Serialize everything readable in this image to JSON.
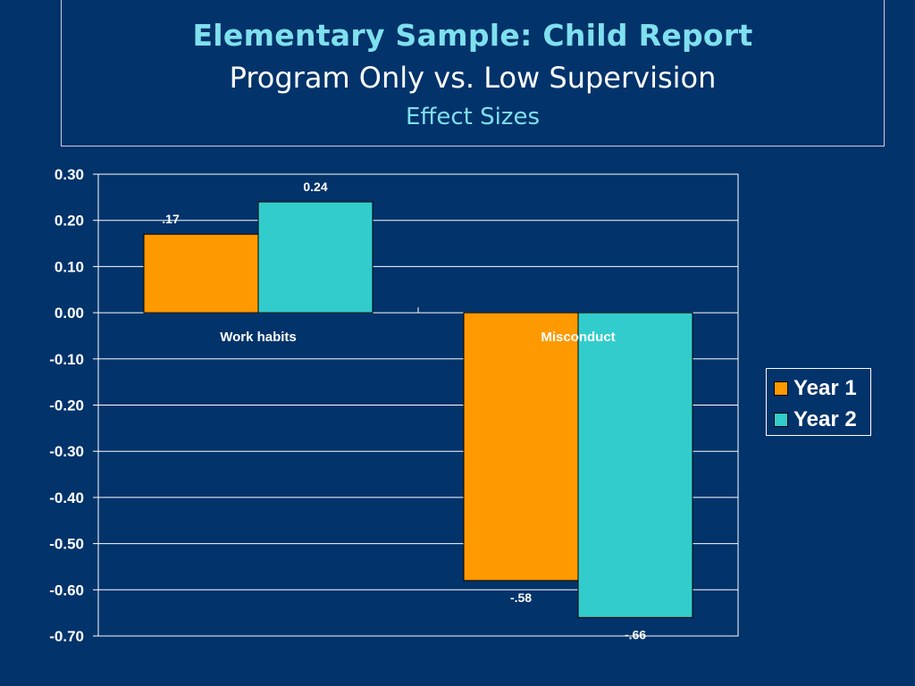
{
  "title": "Elementary Sample: Child Report",
  "subtitle": "Program Only vs. Low Supervision",
  "subtitle2": "Effect Sizes",
  "chart_data": {
    "type": "bar",
    "categories": [
      "Work habits",
      "Misconduct"
    ],
    "series": [
      {
        "name": "Year 1",
        "values": [
          0.17,
          -0.58
        ],
        "color": "#ff9900",
        "labels": [
          ".17",
          "-.58"
        ]
      },
      {
        "name": "Year 2",
        "values": [
          0.24,
          -0.66
        ],
        "color": "#33cccc",
        "labels": [
          "0.24",
          "-.66"
        ]
      }
    ],
    "ylim": [
      -0.7,
      0.3
    ],
    "yticks": [
      "0.30",
      "0.20",
      "0.10",
      "0.00",
      "-0.10",
      "-0.20",
      "-0.30",
      "-0.40",
      "-0.50",
      "-0.60",
      "-0.70"
    ],
    "ytick_values": [
      0.3,
      0.2,
      0.1,
      0.0,
      -0.1,
      -0.2,
      -0.3,
      -0.4,
      -0.5,
      -0.6,
      -0.7
    ],
    "grid": true,
    "legend_position": "right"
  }
}
